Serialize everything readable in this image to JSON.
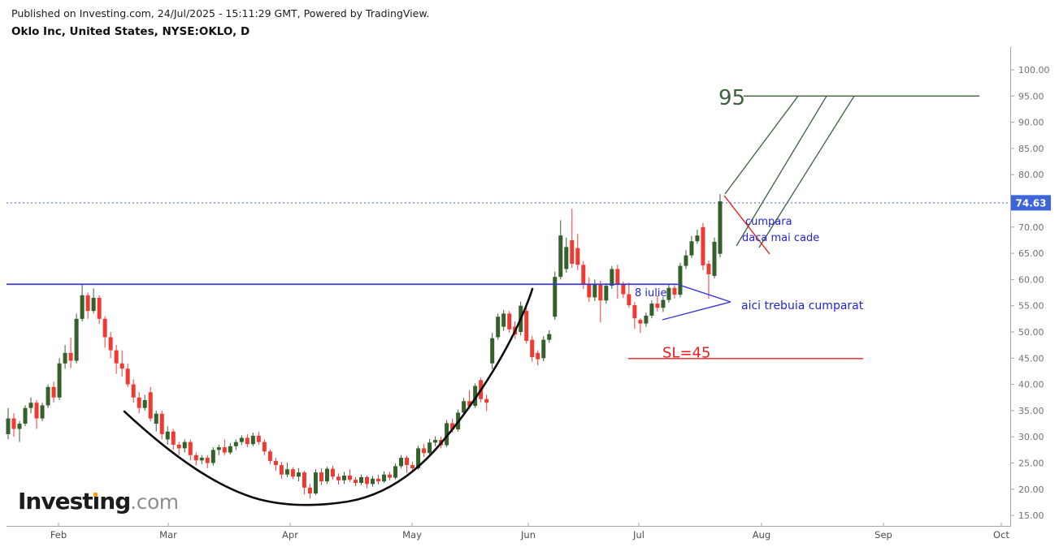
{
  "header": {
    "published_line": "Published on Investing.com, 24/Jul/2025 - 15:11:29 GMT, Powered by TradingView.",
    "instrument_line": "Oklo Inc, United States, NYSE:OKLO, D"
  },
  "logo": {
    "pre": "Invest",
    "idot": "ı",
    "post": "ng",
    "tld": ".com",
    "full_text": "Investing.com"
  },
  "colors": {
    "candle_up": "#35602c",
    "candle_down": "#ef3a34",
    "blue_line": "#3939d9",
    "blue_text": "#2323d6",
    "green_line": "#3c5f3c",
    "red_annotation": "#e82020",
    "dotted_line": "#8b9fe8",
    "badge_bg": "#3d64d8",
    "badge_text": "#ffffff",
    "axis_line": "#a6a6a6",
    "axis_text": "#707070",
    "month_text": "#4d4d4d",
    "curve": "#0d0d0d"
  },
  "chart_data": {
    "type": "candlestick",
    "title": "Oklo Inc, United States, NYSE:OKLO, D",
    "symbol": "NYSE:OKLO",
    "interval": "D",
    "last_price": 74.63,
    "y_axis": {
      "min": 15,
      "max": 100,
      "tick_step": 5,
      "hidden_tick_label": 75
    },
    "x_axis": {
      "labels": [
        "Feb",
        "Mar",
        "Apr",
        "May",
        "Jun",
        "Jul",
        "Aug",
        "Sep",
        "Oct"
      ],
      "positions": [
        72,
        207,
        357,
        507,
        650,
        786,
        937,
        1087,
        1232
      ]
    },
    "candles_format": [
      "open",
      "high",
      "low",
      "close"
    ],
    "candles": [
      [
        30.5,
        35.5,
        29.5,
        33.5
      ],
      [
        33.5,
        34.5,
        30,
        31.5
      ],
      [
        31.5,
        33,
        29,
        32.5
      ],
      [
        32.5,
        36,
        32,
        35.5
      ],
      [
        35.5,
        37.5,
        34.5,
        36.5
      ],
      [
        36.5,
        37,
        31.5,
        33.5
      ],
      [
        33.5,
        36.5,
        33,
        36
      ],
      [
        36,
        40,
        35.5,
        39.5
      ],
      [
        39.5,
        40.5,
        36.5,
        37.5
      ],
      [
        37.5,
        45,
        37,
        44
      ],
      [
        44,
        47.5,
        43,
        46
      ],
      [
        46,
        48.9,
        43.1,
        44.5
      ],
      [
        44.5,
        53.5,
        44,
        52.5
      ],
      [
        52.5,
        59,
        52,
        57
      ],
      [
        57,
        57.5,
        52.5,
        54
      ],
      [
        54,
        58.3,
        53.5,
        56.5
      ],
      [
        56.5,
        57,
        51.5,
        52.5
      ],
      [
        52.5,
        53,
        47,
        49
      ],
      [
        49,
        50,
        45,
        46.5
      ],
      [
        46.5,
        47.5,
        42,
        44
      ],
      [
        44,
        46.5,
        41.5,
        43
      ],
      [
        43,
        44,
        39.5,
        40
      ],
      [
        40,
        41,
        36.5,
        37.5
      ],
      [
        37.5,
        38.5,
        34.5,
        35.5
      ],
      [
        35.5,
        38,
        35,
        37
      ],
      [
        38.5,
        39.5,
        33,
        33.5
      ],
      [
        32.5,
        35,
        31,
        34.4
      ],
      [
        34.4,
        35,
        29.5,
        30.5
      ],
      [
        29.5,
        32,
        28.5,
        31
      ],
      [
        31,
        31.5,
        27.5,
        28.5
      ],
      [
        28.5,
        29,
        26.5,
        27.8
      ],
      [
        27.8,
        29.5,
        27,
        29
      ],
      [
        29,
        29.5,
        25.5,
        26.5
      ],
      [
        26.5,
        27,
        24.5,
        25.5
      ],
      [
        25.5,
        26.5,
        24.8,
        26
      ],
      [
        26,
        26.5,
        24,
        25
      ],
      [
        25,
        28,
        24.5,
        27.5
      ],
      [
        27.5,
        28.5,
        26.5,
        28
      ],
      [
        28,
        29.5,
        26.5,
        27
      ],
      [
        27,
        28.8,
        26.6,
        28.2
      ],
      [
        28.2,
        29.5,
        27.5,
        29
      ],
      [
        29,
        30.3,
        28.4,
        29.8
      ],
      [
        29.8,
        30.5,
        28,
        28.6
      ],
      [
        28.6,
        30.8,
        28.2,
        30.2
      ],
      [
        30.2,
        31,
        28.5,
        29
      ],
      [
        29,
        29.5,
        26.5,
        27.2
      ],
      [
        27.2,
        27.6,
        24.8,
        25.4
      ],
      [
        25.4,
        26,
        23.5,
        24.6
      ],
      [
        24.6,
        25.2,
        22,
        22.8
      ],
      [
        22.8,
        25.1,
        22.3,
        23.8
      ],
      [
        23.8,
        24.2,
        21.9,
        22.4
      ],
      [
        22.4,
        24,
        21.5,
        23.2
      ],
      [
        23.2,
        23.6,
        19,
        20.3
      ],
      [
        20.3,
        21,
        18.2,
        19.2
      ],
      [
        19.2,
        23.8,
        18.9,
        23.2
      ],
      [
        23.2,
        24,
        20.8,
        21.5
      ],
      [
        21.5,
        24.3,
        21,
        23.9
      ],
      [
        23.9,
        24.5,
        21.8,
        22.4
      ],
      [
        22.4,
        23,
        20.9,
        21.7
      ],
      [
        21.7,
        23.3,
        21,
        22.6
      ],
      [
        22.6,
        23.8,
        21.4,
        21.8
      ],
      [
        21.8,
        22.3,
        20.6,
        21.2
      ],
      [
        21.2,
        22.8,
        20.8,
        22.3
      ],
      [
        22.3,
        22.6,
        20.2,
        21
      ],
      [
        21,
        22.5,
        20.5,
        22
      ],
      [
        22,
        22.8,
        20.9,
        21.5
      ],
      [
        21.5,
        23.4,
        21.2,
        22.8
      ],
      [
        22.8,
        23.3,
        21.7,
        22.2
      ],
      [
        22.2,
        24.9,
        21.9,
        24.4
      ],
      [
        24.4,
        26.5,
        24,
        26
      ],
      [
        26,
        26.4,
        23.1,
        24.6
      ],
      [
        24.6,
        25.2,
        23.3,
        24
      ],
      [
        24,
        28.3,
        23.7,
        27.8
      ],
      [
        27.8,
        28.6,
        26.2,
        26.9
      ],
      [
        26.9,
        29.6,
        26.5,
        28.9
      ],
      [
        28.9,
        30.1,
        28.2,
        29.4
      ],
      [
        29.4,
        30,
        27.8,
        28.4
      ],
      [
        28.4,
        33.2,
        28,
        32.6
      ],
      [
        32.6,
        33.4,
        30.8,
        31.4
      ],
      [
        31.4,
        35.2,
        31,
        34.6
      ],
      [
        34.6,
        37.4,
        34.2,
        36.8
      ],
      [
        36.8,
        38.9,
        35.4,
        35.9
      ],
      [
        35.9,
        40.2,
        35.5,
        39.7
      ],
      [
        40.8,
        41.3,
        36.6,
        37.2
      ],
      [
        37.2,
        38,
        34.9,
        36.5
      ],
      [
        44,
        49.8,
        42.9,
        48.8
      ],
      [
        49,
        53.5,
        48.5,
        52.9
      ],
      [
        51,
        54.2,
        50.2,
        53.5
      ],
      [
        53.5,
        54,
        49.8,
        50.5
      ],
      [
        51,
        52,
        48.7,
        49.5
      ],
      [
        50,
        55.8,
        49.3,
        55
      ],
      [
        54,
        55.5,
        47.8,
        48.3
      ],
      [
        48.5,
        49.2,
        44.3,
        45.2
      ],
      [
        46,
        46.5,
        43.6,
        44.8
      ],
      [
        45,
        49.2,
        44.4,
        48.5
      ],
      [
        48.5,
        50.3,
        47.9,
        49.6
      ],
      [
        52.9,
        61.5,
        52.3,
        60.5
      ],
      [
        60.5,
        71.3,
        60,
        68.4
      ],
      [
        62,
        68,
        61.3,
        66.2
      ],
      [
        67.5,
        73.5,
        62.2,
        63
      ],
      [
        66,
        68.7,
        61.8,
        62.8
      ],
      [
        62.8,
        63.5,
        58.2,
        59
      ],
      [
        59,
        60.4,
        55.7,
        56.6
      ],
      [
        56.6,
        60,
        55.9,
        59.2
      ],
      [
        59.2,
        59.8,
        51.8,
        56
      ],
      [
        56,
        59.3,
        55.4,
        58.8
      ],
      [
        58.8,
        62.6,
        58.2,
        62
      ],
      [
        62,
        62.8,
        56.3,
        59
      ],
      [
        59,
        59.6,
        56.5,
        57.2
      ],
      [
        57.2,
        59.4,
        54.6,
        55.1
      ],
      [
        55.1,
        55.7,
        50.6,
        52.6
      ],
      [
        52.3,
        52.6,
        49.8,
        51.6
      ],
      [
        51.6,
        53.7,
        51,
        53.1
      ],
      [
        53.1,
        56,
        52.6,
        55.4
      ],
      [
        55.4,
        57,
        53.9,
        54.6
      ],
      [
        54.6,
        56.7,
        53.8,
        56.1
      ],
      [
        56.1,
        59,
        55.6,
        58.4
      ],
      [
        58.4,
        58.9,
        56.4,
        57.1
      ],
      [
        57.1,
        63.2,
        56.6,
        62.6
      ],
      [
        62.6,
        65.6,
        62,
        64.6
      ],
      [
        64.6,
        68.3,
        64.1,
        67.3
      ],
      [
        67.3,
        69.5,
        66.8,
        68.4
      ],
      [
        70,
        70.8,
        61.8,
        62.7
      ],
      [
        63,
        63.6,
        56.3,
        61
      ],
      [
        60.7,
        68,
        60.2,
        67.2
      ],
      [
        64.9,
        76.3,
        64.2,
        74.9
      ]
    ],
    "annotations": {
      "target": {
        "label": "95",
        "price": 95
      },
      "buy_note_line1": "cumpara",
      "buy_note_line2": "daca mai cade",
      "should_have_bought": "aici trebuia cumparat",
      "date_note": "8 iulie",
      "stop_loss": {
        "label": "SL=45",
        "price": 45
      },
      "resistance_price": 59.1,
      "last_price_label": "74.63"
    }
  }
}
